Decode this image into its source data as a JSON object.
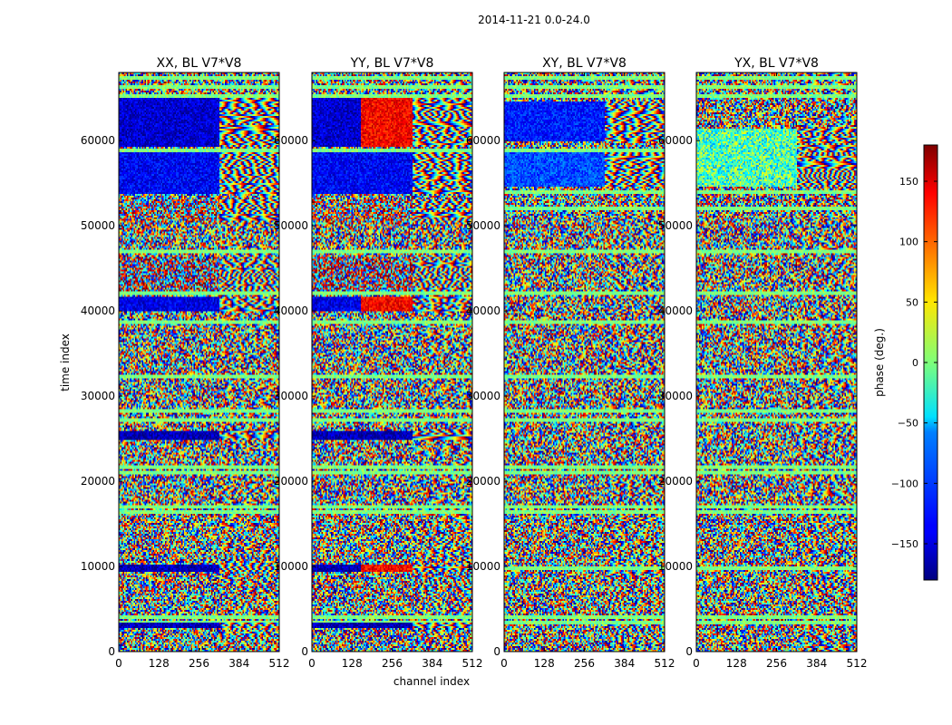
{
  "chart_data": {
    "type": "heatmap",
    "suptitle": "2014-11-21 0.0-24.0",
    "xlabel": "channel index",
    "ylabel": "time index",
    "xlim": [
      0,
      512
    ],
    "ylim": [
      0,
      68000
    ],
    "xticks": [
      "0",
      "128",
      "256",
      "384",
      "512"
    ],
    "xtick_values": [
      0,
      128,
      256,
      384,
      512
    ],
    "yticks": [
      "0",
      "10000",
      "20000",
      "30000",
      "40000",
      "50000",
      "60000"
    ],
    "ytick_values": [
      0,
      10000,
      20000,
      30000,
      40000,
      50000,
      60000
    ],
    "panels": [
      {
        "title": "XX, BL V7*V8",
        "variant": "xx"
      },
      {
        "title": "YY, BL V7*V8",
        "variant": "yy"
      },
      {
        "title": "XY, BL V7*V8",
        "variant": "xy"
      },
      {
        "title": "YX, BL V7*V8",
        "variant": "yx"
      }
    ],
    "colorbar": {
      "label": "phase (deg.)",
      "range": [
        -180,
        180
      ],
      "colormap": "jet",
      "ticks": [
        "150",
        "100",
        "50",
        "0",
        "−50",
        "−100",
        "−150"
      ],
      "tick_values": [
        150,
        100,
        50,
        0,
        -50,
        -100,
        -150
      ]
    }
  }
}
